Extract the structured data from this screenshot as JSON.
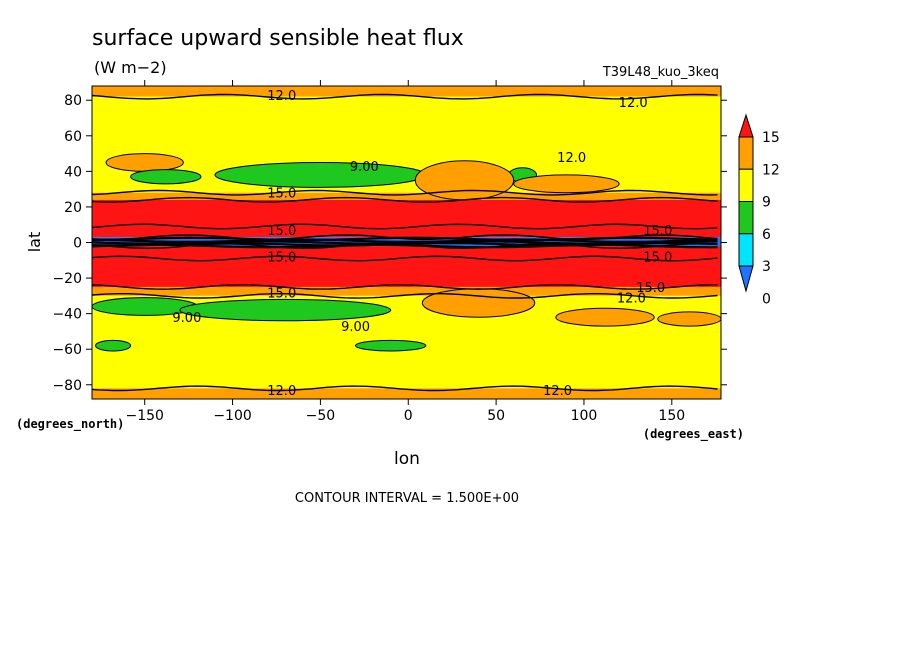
{
  "chart_data": {
    "type": "heatmap",
    "title": "surface upward sensible heat flux",
    "units": "(W m−2)",
    "run_label": "T39L48_kuo_3keq",
    "xlabel": "lon",
    "ylabel": "lat",
    "x_units": "(degrees_east)",
    "y_units": "(degrees_north)",
    "xlim": [
      -180,
      178
    ],
    "ylim": [
      -88,
      88
    ],
    "x_ticks": [
      -150,
      -100,
      -50,
      0,
      50,
      100,
      150
    ],
    "x_tick_labels": [
      "−150",
      "−100",
      "−50",
      "0",
      "50",
      "100",
      "150"
    ],
    "y_ticks": [
      80,
      60,
      40,
      20,
      0,
      -20,
      -40,
      -60,
      -80
    ],
    "y_tick_labels": [
      "80",
      "60",
      "40",
      "20",
      "0",
      "−20",
      "−40",
      "−60",
      "−80"
    ],
    "colorbar": {
      "levels": [
        0,
        3,
        6,
        9,
        12,
        15
      ],
      "labels": [
        "15",
        "12",
        "9",
        "6",
        "3",
        "0"
      ],
      "colors": [
        "#1e74ff",
        "#00e5ff",
        "#1ec81e",
        "#ffff00",
        "#ffa000",
        "#ff1414"
      ]
    },
    "bands": [
      {
        "lat_top": 88,
        "lat_bottom": 82,
        "value": 12.5
      },
      {
        "lat_top": 82,
        "lat_bottom": 28,
        "value": 10.5
      },
      {
        "lat_top": 28,
        "lat_bottom": 24,
        "value": 12.5
      },
      {
        "lat_top": 24,
        "lat_bottom": 9,
        "value": 16
      },
      {
        "lat_top": 9,
        "lat_bottom": 3,
        "value": 17
      },
      {
        "lat_top": 3,
        "lat_bottom": -2,
        "value": 1
      },
      {
        "lat_top": -2,
        "lat_bottom": -9,
        "value": 17
      },
      {
        "lat_top": -9,
        "lat_bottom": -25,
        "value": 16
      },
      {
        "lat_top": -25,
        "lat_bottom": -30,
        "value": 12.5
      },
      {
        "lat_top": -30,
        "lat_bottom": -82,
        "value": 10.5
      },
      {
        "lat_top": -82,
        "lat_bottom": -88,
        "value": 12.5
      }
    ],
    "patches": [
      {
        "lon": -150,
        "lat": 45,
        "dlon": 22,
        "dlat": 5,
        "value": 12.5
      },
      {
        "lon": -138,
        "lat": 37,
        "dlon": 20,
        "dlat": 4,
        "value": 7
      },
      {
        "lon": -50,
        "lat": 38,
        "dlon": 60,
        "dlat": 7,
        "value": 7
      },
      {
        "lon": 65,
        "lat": 38,
        "dlon": 8,
        "dlat": 4,
        "value": 7
      },
      {
        "lon": 32,
        "lat": 35,
        "dlon": 28,
        "dlat": 11,
        "value": 12.5
      },
      {
        "lon": 90,
        "lat": 33,
        "dlon": 30,
        "dlat": 5,
        "value": 12.5
      },
      {
        "lon": -150,
        "lat": -36,
        "dlon": 30,
        "dlat": 5,
        "value": 7
      },
      {
        "lon": -70,
        "lat": -38,
        "dlon": 60,
        "dlat": 6,
        "value": 7
      },
      {
        "lon": -10,
        "lat": -58,
        "dlon": 20,
        "dlat": 3,
        "value": 7
      },
      {
        "lon": -168,
        "lat": -58,
        "dlon": 10,
        "dlat": 3,
        "value": 7
      },
      {
        "lon": 40,
        "lat": -34,
        "dlon": 32,
        "dlat": 8,
        "value": 12.5
      },
      {
        "lon": 112,
        "lat": -42,
        "dlon": 28,
        "dlat": 5,
        "value": 12.5
      },
      {
        "lon": 160,
        "lat": -43,
        "dlon": 18,
        "dlat": 4,
        "value": 12.5
      }
    ],
    "contour_labels": [
      {
        "text": "12.0",
        "lon": -72,
        "lat": 83
      },
      {
        "text": "12.0",
        "lon": 128,
        "lat": 79
      },
      {
        "text": "9.00",
        "lon": -25,
        "lat": 43
      },
      {
        "text": "12.0",
        "lon": 93,
        "lat": 48
      },
      {
        "text": "15.0",
        "lon": -72,
        "lat": 28
      },
      {
        "text": "15.0",
        "lon": -72,
        "lat": 7
      },
      {
        "text": "15.0",
        "lon": 142,
        "lat": 7
      },
      {
        "text": "15.0",
        "lon": -72,
        "lat": -8
      },
      {
        "text": "15.0",
        "lon": 142,
        "lat": -8
      },
      {
        "text": "15.0",
        "lon": -72,
        "lat": -28
      },
      {
        "text": "15.0",
        "lon": 138,
        "lat": -25
      },
      {
        "text": "12.0",
        "lon": 127,
        "lat": -31
      },
      {
        "text": "9.00",
        "lon": -126,
        "lat": -42
      },
      {
        "text": "9.00",
        "lon": -30,
        "lat": -47
      },
      {
        "text": "12.0",
        "lon": -72,
        "lat": -83
      },
      {
        "text": "12.0",
        "lon": 85,
        "lat": -83
      }
    ],
    "grid": false,
    "legend": "right"
  },
  "footer": {
    "contour_interval": "CONTOUR INTERVAL = 1.500E+00"
  }
}
